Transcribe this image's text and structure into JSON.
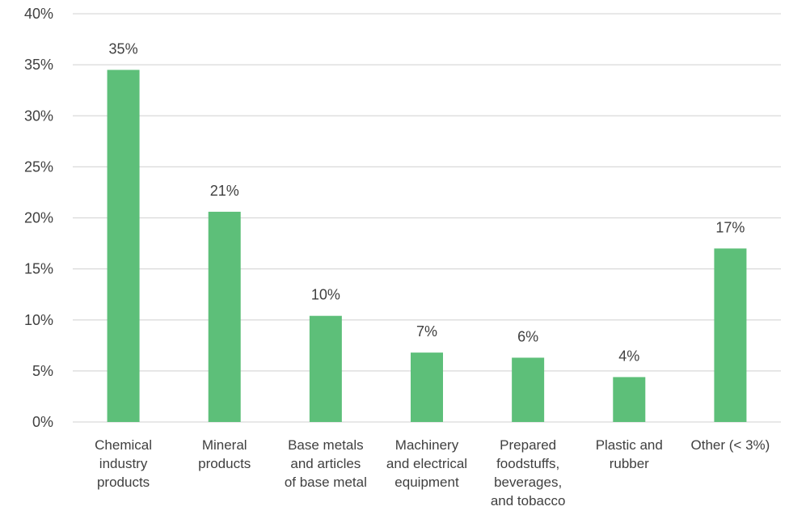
{
  "chart_data": {
    "type": "bar",
    "title": "",
    "xlabel": "",
    "ylabel": "",
    "categories": [
      [
        "Chemical",
        "industry",
        "products"
      ],
      [
        "Mineral",
        "products"
      ],
      [
        "Base metals",
        "and articles",
        "of base metal"
      ],
      [
        "Machinery",
        "and electrical",
        "equipment"
      ],
      [
        "Prepared",
        "foodstuffs,",
        "beverages,",
        "and tobacco"
      ],
      [
        "Plastic and",
        "rubber"
      ],
      [
        "Other (< 3%)"
      ]
    ],
    "values": [
      34.5,
      20.6,
      10.4,
      6.8,
      6.3,
      4.4,
      17.0
    ],
    "data_labels": [
      "35%",
      "21%",
      "10%",
      "7%",
      "6%",
      "4%",
      "17%"
    ],
    "ylim": [
      0,
      40
    ],
    "yticks": [
      0,
      5,
      10,
      15,
      20,
      25,
      30,
      35,
      40
    ],
    "ytick_labels": [
      "0%",
      "5%",
      "10%",
      "15%",
      "20%",
      "25%",
      "30%",
      "35%",
      "40%"
    ],
    "grid": true,
    "legend": "none",
    "bar_color": "#5dbf79",
    "grid_color": "#d9d9d9",
    "text_color": "#404040"
  }
}
